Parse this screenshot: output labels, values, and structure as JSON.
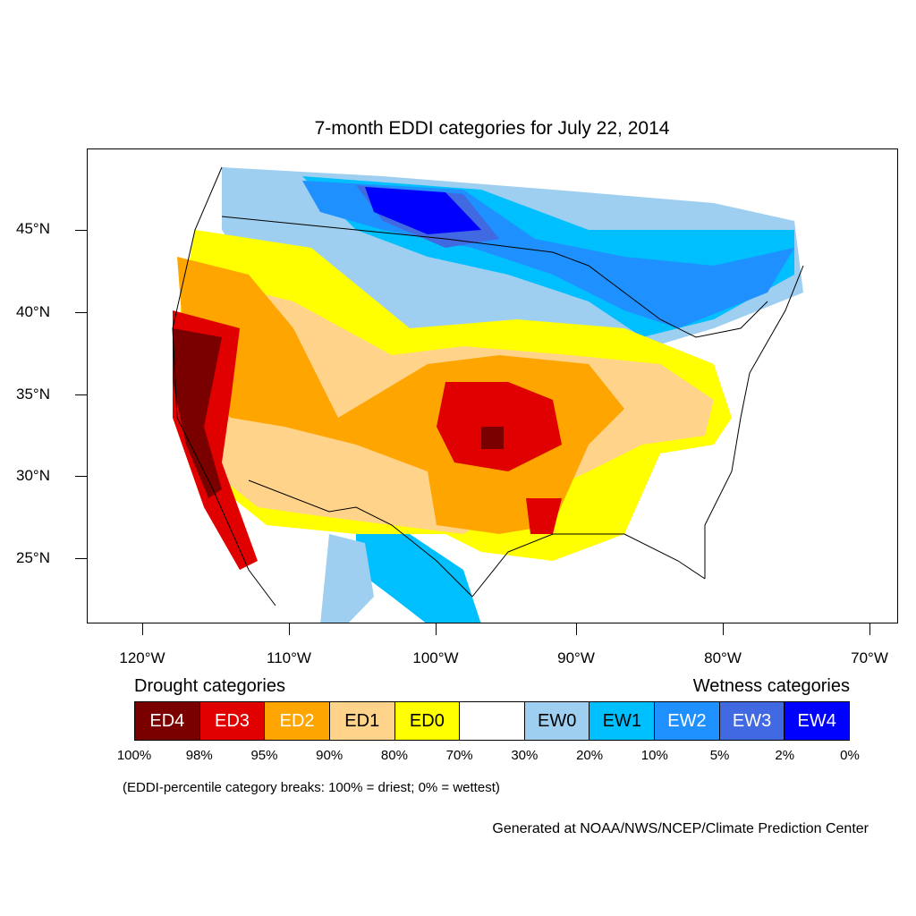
{
  "title": "7-month EDDI categories for July 22, 2014",
  "map": {
    "lat_labels": [
      "45°N",
      "40°N",
      "35°N",
      "30°N",
      "25°N"
    ],
    "lon_labels": [
      "120°W",
      "110°W",
      "100°W",
      "90°W",
      "80°W",
      "70°W"
    ]
  },
  "legend": {
    "drought_heading": "Drought categories",
    "wetness_heading": "Wetness categories",
    "categories": [
      {
        "label": "ED4",
        "color": "#7a0000",
        "text_color": "#ffffff"
      },
      {
        "label": "ED3",
        "color": "#e00000",
        "text_color": "#ffffff"
      },
      {
        "label": "ED2",
        "color": "#ffa500",
        "text_color": "#ffffff"
      },
      {
        "label": "ED1",
        "color": "#ffd38a",
        "text_color": "#000000"
      },
      {
        "label": "ED0",
        "color": "#ffff00",
        "text_color": "#000000"
      },
      {
        "label": "",
        "color": "#ffffff",
        "text_color": "#000000"
      },
      {
        "label": "EW0",
        "color": "#9ecff0",
        "text_color": "#000000"
      },
      {
        "label": "EW1",
        "color": "#00bfff",
        "text_color": "#000000"
      },
      {
        "label": "EW2",
        "color": "#1e90ff",
        "text_color": "#ffffff"
      },
      {
        "label": "EW3",
        "color": "#4169e1",
        "text_color": "#ffffff"
      },
      {
        "label": "EW4",
        "color": "#0000ff",
        "text_color": "#ffffff"
      }
    ],
    "breaks": [
      "100%",
      "98%",
      "95%",
      "90%",
      "80%",
      "70%",
      "30%",
      "20%",
      "10%",
      "5%",
      "2%",
      "0%"
    ]
  },
  "note": "(EDDI-percentile category breaks: 100% = driest; 0% = wettest)",
  "credit": "Generated at NOAA/NWS/NCEP/Climate Prediction Center"
}
